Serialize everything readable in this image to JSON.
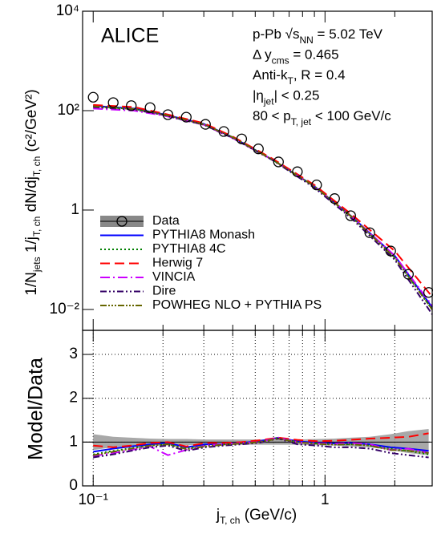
{
  "chart_data": [
    {
      "type": "line",
      "title": "ALICE",
      "log_x": true,
      "log_y": true,
      "annotations": [
        [
          {
            "text": "p-Pb "
          },
          {
            "text": "√s"
          },
          {
            "text": "NN",
            "sub": true
          },
          {
            "text": " = 5.02 TeV"
          }
        ],
        [
          {
            "text": "Δ y"
          },
          {
            "text": "cms",
            "sub": true
          },
          {
            "text": " = 0.465"
          }
        ],
        [
          {
            "text": "Anti-k"
          },
          {
            "text": "T",
            "sub": true
          },
          {
            "text": ", R = 0.4"
          }
        ],
        [
          {
            "text": "|η"
          },
          {
            "text": "jet",
            "sub": true
          },
          {
            "text": "| < 0.25"
          }
        ],
        [
          {
            "text": "80 < p"
          },
          {
            "text": "T, jet",
            "sub": true
          },
          {
            "text": " < 100 GeV/c"
          }
        ]
      ],
      "y_label": [
        {
          "text": "1/N"
        },
        {
          "text": "jets",
          "sub": true
        },
        {
          "text": " 1/j"
        },
        {
          "text": "T, ch",
          "sub": true
        },
        {
          "text": " dN/dj"
        },
        {
          "text": "T, ch",
          "sub": true
        },
        {
          "text": " (c²/GeV²)"
        }
      ],
      "xlim": [
        0.09,
        2.9
      ],
      "ylim": [
        0.0038,
        10000
      ],
      "yticks": [
        {
          "value": 0.01,
          "label": "10⁻²"
        },
        1,
        {
          "value": 100,
          "label": "10²"
        },
        {
          "value": 10000,
          "label": "10⁴"
        }
      ],
      "legend": "lower left",
      "series": [
        {
          "name": "Data",
          "color": "#000000",
          "marker": "circle",
          "x": [
            0.1,
            0.122,
            0.146,
            0.176,
            0.21,
            0.252,
            0.305,
            0.366,
            0.437,
            0.516,
            0.63,
            0.76,
            0.92,
            1.1,
            1.29,
            1.56,
            1.92,
            2.29,
            2.8
          ],
          "values": [
            186,
            145,
            126,
            115,
            83,
            74,
            53,
            38,
            27,
            17,
            9.3,
            5.9,
            3.2,
            1.7,
            0.77,
            0.35,
            0.15,
            0.051,
            0.022
          ]
        },
        {
          "name": "PYTHIA8 Monash",
          "color": "#0000ff",
          "dash": "none",
          "x": [
            0.1,
            0.15,
            0.2,
            0.3,
            0.4,
            0.6,
            0.9,
            1.3,
            2,
            2.9
          ],
          "values": [
            125,
            110,
            85,
            54,
            29,
            10,
            3.0,
            0.75,
            0.12,
            0.011
          ]
        },
        {
          "name": "PYTHIA8 4C",
          "color": "#008000",
          "dash": "2,3",
          "x": [
            0.1,
            0.15,
            0.2,
            0.3,
            0.4,
            0.6,
            0.9,
            1.3,
            2,
            2.9
          ],
          "values": [
            120,
            108,
            83,
            53,
            29,
            10,
            3.0,
            0.73,
            0.11,
            0.01
          ]
        },
        {
          "name": "Herwig 7",
          "color": "#ff0000",
          "dash": "12,6",
          "x": [
            0.1,
            0.15,
            0.2,
            0.3,
            0.4,
            0.6,
            0.9,
            1.3,
            2,
            2.9
          ],
          "values": [
            130,
            118,
            88,
            56,
            30,
            10.5,
            3.2,
            0.82,
            0.15,
            0.018
          ]
        },
        {
          "name": "VINCIA",
          "color": "#cc00ff",
          "dash": "12,4,2,4",
          "x": [
            0.1,
            0.15,
            0.2,
            0.3,
            0.4,
            0.6,
            0.9,
            1.3,
            2,
            2.9
          ],
          "values": [
            110,
            100,
            80,
            52,
            28,
            10,
            3.0,
            0.74,
            0.12,
            0.012
          ]
        },
        {
          "name": "Dire",
          "color": "#330066",
          "dash": "8,3,2,3,2,3",
          "x": [
            0.1,
            0.15,
            0.2,
            0.3,
            0.4,
            0.6,
            0.9,
            1.3,
            2,
            2.9
          ],
          "values": [
            118,
            105,
            82,
            52,
            28,
            9.8,
            2.8,
            0.68,
            0.1,
            0.008
          ]
        },
        {
          "name": "POWHEG NLO + PYTHIA PS",
          "color": "#666600",
          "dash": "8,2,2,2,2,2,2,2",
          "x": [
            0.1,
            0.15,
            0.2,
            0.3,
            0.4,
            0.6,
            0.9,
            1.3,
            2,
            2.9
          ],
          "values": [
            122,
            108,
            84,
            53,
            29,
            10,
            3.0,
            0.74,
            0.11,
            0.01
          ]
        }
      ]
    },
    {
      "type": "ratio",
      "log_x": true,
      "log_y": false,
      "grid": true,
      "y_label": "Model/Data",
      "x_label": [
        {
          "text": "j"
        },
        {
          "text": "T, ch",
          "sub": true
        },
        {
          "text": " (GeV/c)"
        }
      ],
      "xlim": [
        0.09,
        2.9
      ],
      "ylim": [
        0,
        3.55
      ],
      "yticks": [
        0,
        1,
        2,
        3
      ],
      "xticks": [
        {
          "value": 0.1,
          "label": "10⁻¹"
        },
        1
      ],
      "xminor_ticks": [
        0.2,
        0.3,
        0.4,
        0.5,
        0.6,
        0.7,
        0.8,
        0.9,
        2
      ],
      "reference": 1,
      "uncertainty_color": "#999999",
      "x": [
        0.1,
        0.122,
        0.146,
        0.176,
        0.21,
        0.252,
        0.305,
        0.366,
        0.437,
        0.516,
        0.63,
        0.76,
        0.92,
        1.1,
        1.29,
        1.56,
        1.92,
        2.29,
        2.8
      ],
      "uncertainty": [
        0.18,
        0.12,
        0.1,
        0.08,
        0.07,
        0.07,
        0.06,
        0.06,
        0.06,
        0.06,
        0.06,
        0.06,
        0.07,
        0.08,
        0.1,
        0.12,
        0.18,
        0.25,
        0.3
      ],
      "series": [
        {
          "color": "#0000ff",
          "dash": "none",
          "values": [
            0.78,
            0.85,
            0.9,
            0.95,
            0.98,
            0.88,
            0.95,
            0.95,
            0.98,
            1.02,
            1.1,
            1.02,
            0.98,
            0.97,
            0.98,
            0.95,
            0.88,
            0.85,
            0.8
          ]
        },
        {
          "color": "#008000",
          "dash": "2,3",
          "values": [
            0.72,
            0.8,
            0.86,
            0.92,
            0.95,
            0.85,
            0.92,
            0.95,
            0.97,
            1.0,
            1.1,
            1.0,
            0.97,
            0.95,
            0.95,
            0.92,
            0.85,
            0.8,
            0.72
          ]
        },
        {
          "color": "#ff0000",
          "dash": "12,6",
          "values": [
            0.92,
            0.88,
            0.92,
            0.98,
            1.0,
            0.9,
            0.98,
            0.98,
            1.0,
            1.04,
            1.1,
            1.05,
            1.02,
            1.03,
            1.05,
            1.08,
            1.1,
            1.12,
            1.2
          ]
        },
        {
          "color": "#cc00ff",
          "dash": "12,4,2,4",
          "values": [
            0.68,
            0.75,
            0.82,
            0.9,
            0.7,
            0.82,
            0.92,
            0.95,
            0.98,
            1.0,
            1.1,
            1.0,
            0.97,
            0.96,
            0.98,
            0.95,
            0.82,
            0.85,
            0.75
          ]
        },
        {
          "color": "#330066",
          "dash": "8,3,2,3,2,3",
          "values": [
            0.65,
            0.72,
            0.8,
            0.88,
            0.92,
            0.8,
            0.88,
            0.92,
            0.95,
            0.98,
            1.08,
            0.95,
            0.92,
            0.88,
            0.88,
            0.85,
            0.75,
            0.7,
            0.65
          ]
        },
        {
          "color": "#666600",
          "dash": "8,2,2,2,2,2,2,2",
          "values": [
            0.7,
            0.78,
            0.85,
            0.92,
            0.95,
            0.84,
            0.9,
            0.94,
            0.97,
            1.0,
            1.08,
            1.0,
            0.96,
            0.94,
            0.95,
            0.92,
            0.82,
            0.8,
            0.75
          ]
        }
      ]
    }
  ]
}
